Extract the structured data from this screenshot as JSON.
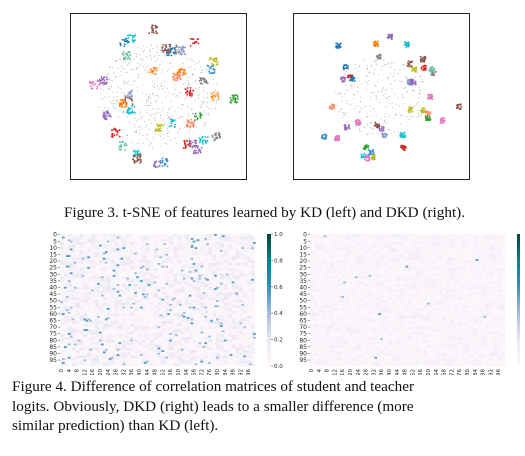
{
  "figure3": {
    "caption": "Figure 3. t-SNE of features learned by KD (left) and DKD (right).",
    "panels": [
      {
        "name": "KD",
        "position": "left",
        "style": "dense diffuse center, clusters around edges"
      },
      {
        "name": "DKD",
        "position": "right",
        "style": "tighter, more separated clusters"
      }
    ],
    "cluster_colors": [
      "#1f77b4",
      "#ff7f0e",
      "#2ca02c",
      "#d62728",
      "#9467bd",
      "#8c564b",
      "#e377c2",
      "#7f7f7f",
      "#bcbd22",
      "#17becf",
      "#3a8fd0",
      "#66c2a5",
      "#fc8d62",
      "#8da0cb"
    ]
  },
  "figure4": {
    "caption_lines": [
      "Figure 4.  Difference of correlation matrices of student and teacher",
      "logits.  Obviously, DKD (right) leads to a smaller difference (more",
      "similar prediction) than KD (left)."
    ],
    "chart_data": [
      {
        "type": "heatmap",
        "panel": "KD (left)",
        "y_ticks": [
          "0",
          "5",
          "10",
          "15",
          "20",
          "25",
          "30",
          "35",
          "40",
          "45",
          "50",
          "55",
          "60",
          "65",
          "70",
          "75",
          "80",
          "85",
          "90",
          "95"
        ],
        "x_ticks": [
          "0",
          "4",
          "8",
          "12",
          "16",
          "20",
          "24",
          "28",
          "32",
          "36",
          "40",
          "44",
          "48",
          "52",
          "56",
          "60",
          "64",
          "68",
          "72",
          "76",
          "80",
          "84",
          "88",
          "92",
          "96"
        ],
        "colorbar_ticks": [
          "1.0",
          "0.8",
          "0.6",
          "0.4",
          "0.2",
          "0.0"
        ],
        "colorbar_range": [
          0.0,
          1.0
        ],
        "colormap": [
          "#fff7fb",
          "#ece7f2",
          "#a6bddb",
          "#3690c0",
          "#02818a",
          "#014636"
        ],
        "noise_level": 0.12,
        "highlight_density": 0.022
      },
      {
        "type": "heatmap",
        "panel": "DKD (right)",
        "y_ticks": [
          "0",
          "5",
          "10",
          "15",
          "20",
          "25",
          "30",
          "35",
          "40",
          "45",
          "50",
          "55",
          "60",
          "65",
          "70",
          "75",
          "80",
          "85",
          "90",
          "95"
        ],
        "x_ticks": [
          "0",
          "4",
          "8",
          "12",
          "16",
          "20",
          "24",
          "28",
          "32",
          "36",
          "40",
          "44",
          "48",
          "52",
          "56",
          "60",
          "64",
          "68",
          "72",
          "76",
          "80",
          "84",
          "88",
          "92",
          "96"
        ],
        "colorbar_ticks": [
          "1.0",
          "0.8",
          "0.6",
          "0.4",
          "0.2",
          "0.0"
        ],
        "colorbar_range": [
          0.0,
          1.0
        ],
        "colormap": [
          "#fff7fb",
          "#ece7f2",
          "#a6bddb",
          "#3690c0",
          "#02818a",
          "#014636"
        ],
        "noise_level": 0.06,
        "highlight_density": 0.002
      }
    ]
  }
}
